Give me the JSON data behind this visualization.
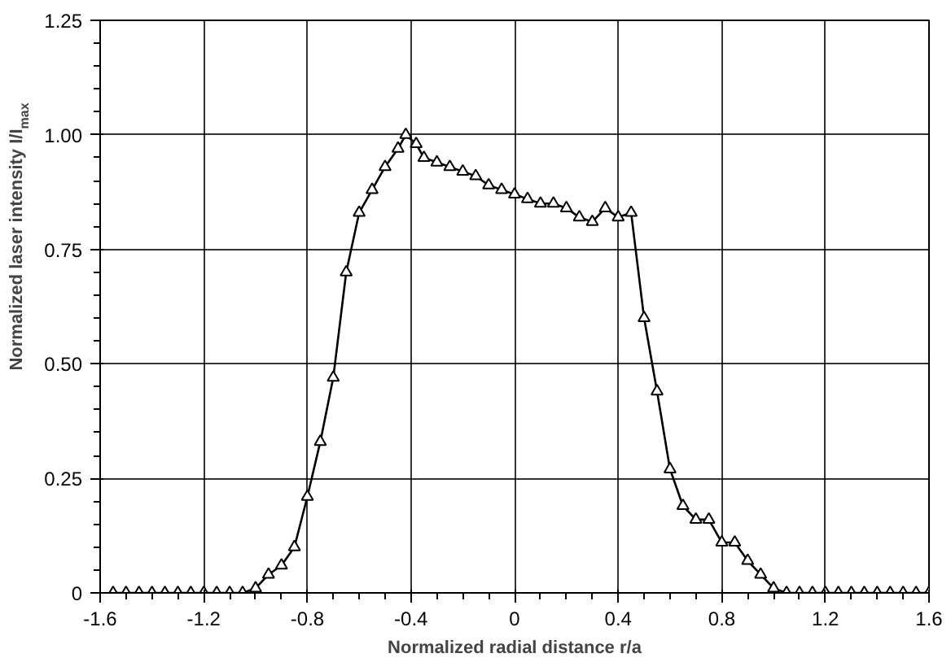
{
  "chart_data": {
    "type": "line",
    "xlabel": "Normalized radial distance r/a",
    "ylabel": "Normalized laser intensity I/I$_{max}$",
    "xlim": [
      -1.6,
      1.6
    ],
    "ylim": [
      0,
      1.25
    ],
    "xticks": [
      -1.6,
      -1.2,
      -0.8,
      -0.4,
      0,
      0.4,
      0.8,
      1.2,
      1.6
    ],
    "yticks": [
      {
        "value": 0,
        "label": "0"
      },
      {
        "value": 0.25,
        "label": "0.25"
      },
      {
        "value": 0.5,
        "label": "0.50"
      },
      {
        "value": 0.75,
        "label": "0.75"
      },
      {
        "value": 1.0,
        "label": "1.00"
      },
      {
        "value": 1.25,
        "label": "1.25"
      }
    ],
    "grid": true,
    "marker": "triangle",
    "line_style": "solid",
    "series": [
      {
        "color": "#000000",
        "x": [
          -1.55,
          -1.5,
          -1.45,
          -1.4,
          -1.35,
          -1.3,
          -1.25,
          -1.2,
          -1.15,
          -1.1,
          -1.05,
          -1.0,
          -0.95,
          -0.9,
          -0.85,
          -0.8,
          -0.75,
          -0.7,
          -0.65,
          -0.6,
          -0.55,
          -0.5,
          -0.45,
          -0.42,
          -0.38,
          -0.35,
          -0.3,
          -0.25,
          -0.2,
          -0.15,
          -0.1,
          -0.05,
          0,
          0.05,
          0.1,
          0.15,
          0.2,
          0.25,
          0.3,
          0.35,
          0.4,
          0.45,
          0.5,
          0.55,
          0.6,
          0.65,
          0.7,
          0.75,
          0.8,
          0.85,
          0.9,
          0.95,
          1.0,
          1.05,
          1.1,
          1.15,
          1.2,
          1.25,
          1.3,
          1.35,
          1.4,
          1.45,
          1.5,
          1.55,
          1.6
        ],
        "values": [
          0,
          0,
          0,
          0,
          0,
          0,
          0,
          0,
          0,
          0,
          0,
          0.01,
          0.04,
          0.06,
          0.1,
          0.21,
          0.33,
          0.47,
          0.7,
          0.83,
          0.88,
          0.93,
          0.97,
          1.0,
          0.98,
          0.95,
          0.94,
          0.93,
          0.92,
          0.91,
          0.89,
          0.88,
          0.87,
          0.86,
          0.85,
          0.85,
          0.84,
          0.82,
          0.81,
          0.84,
          0.82,
          0.83,
          0.6,
          0.44,
          0.27,
          0.19,
          0.16,
          0.16,
          0.11,
          0.11,
          0.07,
          0.04,
          0.01,
          0,
          0,
          0,
          0,
          0,
          0,
          0,
          0,
          0,
          0,
          0,
          0
        ]
      }
    ]
  }
}
